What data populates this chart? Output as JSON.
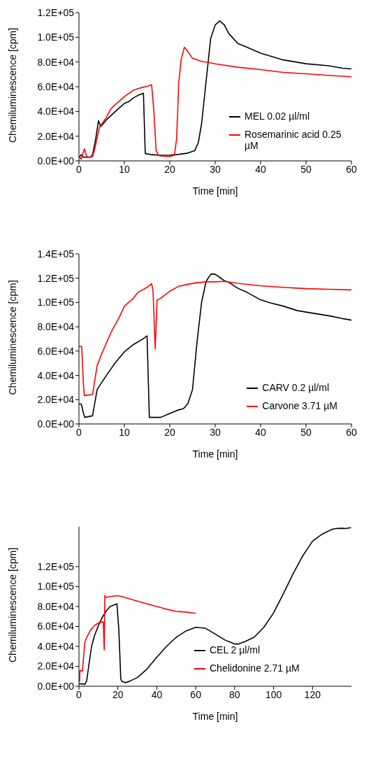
{
  "chart_data": [
    {
      "type": "line",
      "xlabel": "Time [min]",
      "ylabel": "Chemiluminescence [cpm]",
      "xlim": [
        0,
        60
      ],
      "xticks": [
        0,
        10,
        20,
        30,
        40,
        50,
        60
      ],
      "ylim": [
        0,
        120000
      ],
      "yticks": [
        {
          "value": 0,
          "label": "0.0E+00"
        },
        {
          "value": 20000,
          "label": "2.0E+04"
        },
        {
          "value": 40000,
          "label": "4.0E+04"
        },
        {
          "value": 60000,
          "label": "6.0E+04"
        },
        {
          "value": 80000,
          "label": "8.0E+04"
        },
        {
          "value": 100000,
          "label": "1.0E+05"
        },
        {
          "value": 120000,
          "label": "1.2E+05"
        }
      ],
      "grid": false,
      "legend": "right",
      "marker": "none",
      "line_style": "solid",
      "series": [
        {
          "name": "MEL 0.02 µl/ml",
          "color": "#000000",
          "x": [
            0,
            0.5,
            1,
            2.5,
            3,
            3.7,
            4.3,
            4.8,
            6,
            8,
            10,
            11,
            12,
            13,
            14.2,
            14.6,
            16,
            18,
            20,
            22,
            24,
            25.5,
            26.3,
            27,
            28,
            29,
            30,
            31,
            32,
            33,
            34,
            35,
            37,
            40,
            45,
            50,
            55,
            58,
            60
          ],
          "values": [
            2800,
            5000,
            3000,
            3000,
            5000,
            18000,
            32500,
            27800,
            33000,
            40000,
            46500,
            48000,
            51000,
            53000,
            54700,
            6000,
            5000,
            4500,
            4700,
            5300,
            6300,
            8300,
            15000,
            30000,
            64500,
            99000,
            110000,
            113300,
            110000,
            103000,
            99000,
            95000,
            92000,
            87200,
            81700,
            78600,
            77000,
            75000,
            74400
          ]
        },
        {
          "name": "Rosemarinic acid 0.25 µM",
          "color": "#ff0000",
          "x": [
            0,
            0.5,
            1.2,
            1.7,
            2.5,
            3,
            3.5,
            4.5,
            6,
            7,
            8,
            10,
            12,
            13,
            14,
            15,
            16,
            16.5,
            17,
            17.5,
            18,
            20,
            21,
            21.5,
            22,
            22.5,
            23.2,
            23.7,
            25,
            27,
            29,
            30,
            35,
            40,
            45,
            50,
            55,
            60
          ],
          "values": [
            3600,
            1500,
            9800,
            3500,
            3000,
            3500,
            10000,
            27000,
            35000,
            42000,
            45500,
            52000,
            57200,
            58500,
            59500,
            60300,
            61700,
            40000,
            8300,
            4500,
            4000,
            3500,
            4500,
            17600,
            64500,
            81700,
            91900,
            90000,
            83000,
            80500,
            79400,
            78500,
            75800,
            73900,
            71600,
            70500,
            69200,
            68100
          ]
        }
      ]
    },
    {
      "type": "line",
      "xlabel": "Time [min]",
      "ylabel": "Chemiluminescence [cpm]",
      "xlim": [
        0,
        60
      ],
      "xticks": [
        0,
        10,
        20,
        30,
        40,
        50,
        60
      ],
      "ylim": [
        0,
        140000
      ],
      "yticks": [
        {
          "value": 0,
          "label": "0.0E+00"
        },
        {
          "value": 20000,
          "label": "2.0E+04"
        },
        {
          "value": 40000,
          "label": "4.0E+04"
        },
        {
          "value": 60000,
          "label": "6.0E+04"
        },
        {
          "value": 80000,
          "label": "8.0E+04"
        },
        {
          "value": 100000,
          "label": "1.0E+05"
        },
        {
          "value": 120000,
          "label": "1.2E+05"
        },
        {
          "value": 140000,
          "label": "1.4E+05"
        }
      ],
      "grid": false,
      "legend": "bottom right",
      "marker": "none",
      "line_style": "solid",
      "series": [
        {
          "name": "CARV 0.2 µl/ml",
          "color": "#000000",
          "x": [
            0,
            0.5,
            1,
            1.3,
            3,
            4,
            6,
            8,
            10,
            12,
            14,
            15,
            15.5,
            18,
            20,
            22,
            23,
            24,
            25,
            26,
            27,
            28,
            29,
            29.5,
            30,
            31,
            32,
            33,
            35,
            37,
            40,
            42,
            45,
            48,
            50,
            55,
            58,
            60
          ],
          "values": [
            16400,
            16400,
            8700,
            5400,
            6700,
            28300,
            39700,
            50400,
            59400,
            65400,
            69800,
            72500,
            5400,
            5400,
            8700,
            11600,
            12500,
            16800,
            28300,
            67500,
            100000,
            117400,
            123200,
            123500,
            123200,
            120700,
            118000,
            116600,
            111700,
            108400,
            102200,
            99800,
            97000,
            93400,
            92100,
            89100,
            86800,
            85500
          ]
        },
        {
          "name": "Carvone 3.71 µM",
          "color": "#ff0000",
          "x": [
            0,
            0.6,
            1,
            1.2,
            3,
            4,
            5,
            7,
            9,
            10,
            12,
            13,
            15,
            16,
            16.3,
            16.8,
            17.2,
            18,
            20,
            22,
            24,
            26,
            28,
            30,
            32,
            35,
            40,
            45,
            50,
            55,
            60
          ],
          "values": [
            63800,
            63800,
            31600,
            23400,
            24200,
            47900,
            57700,
            74900,
            88800,
            97000,
            103500,
            108400,
            112500,
            115500,
            110000,
            61800,
            101900,
            103500,
            109300,
            113400,
            115000,
            116300,
            117000,
            117000,
            117400,
            115800,
            113800,
            112500,
            111400,
            110900,
            110400
          ]
        }
      ]
    },
    {
      "type": "line",
      "xlabel": "Time [min]",
      "ylabel": "Chemiluminescence [cpm]",
      "xlim": [
        0,
        140
      ],
      "xticks": [
        0,
        20,
        40,
        60,
        80,
        100,
        120
      ],
      "ylim": [
        0,
        160000
      ],
      "yticks": [
        {
          "value": 0,
          "label": "0.0E+00"
        },
        {
          "value": 20000,
          "label": "2.0E+04"
        },
        {
          "value": 40000,
          "label": "4.0E+04"
        },
        {
          "value": 60000,
          "label": "6.0E+04"
        },
        {
          "value": 80000,
          "label": "8.0E+04"
        },
        {
          "value": 100000,
          "label": "1.0E+05"
        },
        {
          "value": 120000,
          "label": "1.2E+05"
        }
      ],
      "grid": false,
      "legend": "bottom",
      "marker": "none",
      "line_style": "solid",
      "series": [
        {
          "name": "CEL 2 µl/ml",
          "color": "#000000",
          "x": [
            0,
            2,
            3,
            4,
            5,
            6.5,
            8,
            10,
            12,
            14,
            16,
            18,
            19.5,
            20.5,
            21.5,
            22,
            24,
            26,
            30,
            35,
            40,
            45,
            50,
            55,
            60,
            65,
            70,
            75,
            80,
            82,
            85,
            90,
            95,
            100,
            105,
            110,
            115,
            120,
            125,
            130,
            132,
            135,
            137,
            139.8
          ],
          "values": [
            2400,
            2400,
            1800,
            5500,
            20000,
            40000,
            50900,
            60900,
            69100,
            75500,
            80000,
            81500,
            82700,
            56400,
            7300,
            4900,
            3600,
            5000,
            8700,
            17300,
            29100,
            40000,
            49100,
            55500,
            59100,
            58200,
            52400,
            46400,
            42400,
            42400,
            44500,
            49100,
            59100,
            73600,
            92700,
            112700,
            130900,
            145500,
            152700,
            157300,
            158200,
            158500,
            158200,
            159100
          ]
        },
        {
          "name": "Chelidonine 2.71 µM",
          "color": "#ff0000",
          "x": [
            0.3,
            0.5,
            1.8,
            2,
            3,
            4,
            6,
            8,
            10,
            12,
            12.5,
            13,
            13.3,
            14,
            16,
            20,
            22,
            25,
            30,
            35,
            40,
            45,
            50,
            55,
            60
          ],
          "values": [
            4500,
            15500,
            15500,
            20000,
            43600,
            49100,
            56400,
            60900,
            63600,
            64500,
            64500,
            36400,
            90900,
            89100,
            90000,
            90900,
            90000,
            88200,
            85500,
            82700,
            80000,
            77300,
            75100,
            74500,
            73100
          ]
        }
      ]
    }
  ]
}
